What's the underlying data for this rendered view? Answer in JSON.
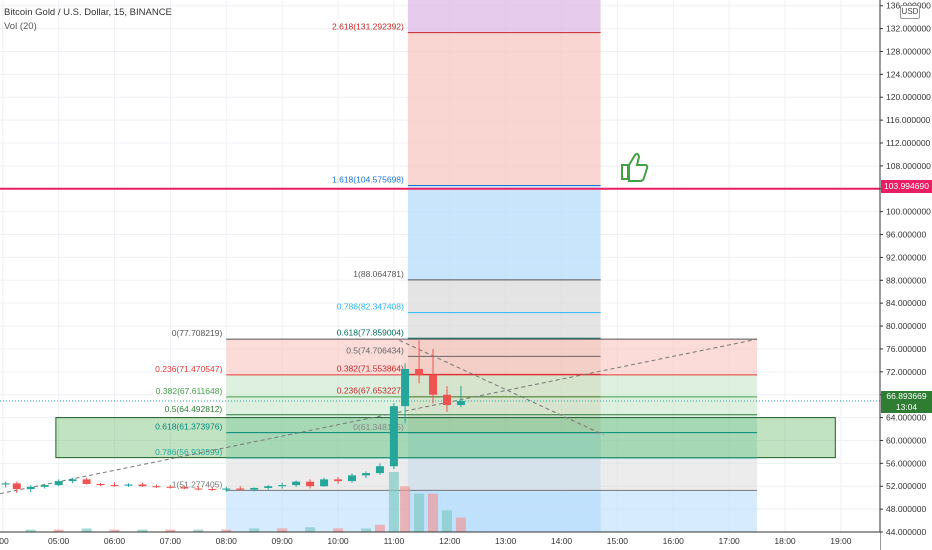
{
  "header": {
    "symbol_line": "Bitcoin Gold / U.S. Dollar, 15, BINANCE",
    "volume_line": "Vol (20)",
    "currency": "USD"
  },
  "price_badges": {
    "alert_line": "103.994690",
    "last_price": "66.893669",
    "countdown": "13:04"
  },
  "colors": {
    "up": "#26a69a",
    "down": "#ef5350",
    "alert": "#e91e63",
    "zone_green": "#4caf50",
    "fib_red": "#f8c4c0",
    "fib_blue": "#bbdefb",
    "fib_purple": "#e1bee7",
    "thumb": "#43a047"
  },
  "chart_data": {
    "type": "candlestick",
    "title": "Bitcoin Gold / U.S. Dollar, 15, BINANCE",
    "ylim": [
      44,
      137
    ],
    "y_ticks": [
      "44.000000",
      "48.000000",
      "52.000000",
      "56.000000",
      "60.000000",
      "64.000000",
      "68.000000",
      "72.000000",
      "76.000000",
      "80.000000",
      "84.000000",
      "88.000000",
      "92.000000",
      "96.000000",
      "100.000000",
      "104.000000",
      "108.000000",
      "112.000000",
      "116.000000",
      "120.000000",
      "124.000000",
      "128.000000",
      "132.000000",
      "136.000000"
    ],
    "x_ticks": [
      ":00",
      "05:00",
      "06:00",
      "07:00",
      "08:00",
      "09:00",
      "10:00",
      "11:00",
      "12:00",
      "13:00",
      "14:00",
      "15:00",
      "16:00",
      "17:00",
      "18:00",
      "19:00"
    ],
    "x_tick_hours": [
      4,
      5,
      6,
      7,
      8,
      9,
      10,
      11,
      12,
      13,
      14,
      15,
      16,
      17,
      18,
      19
    ],
    "x_range_hours": [
      3.95,
      19.7
    ],
    "candles": [
      {
        "t": 4.05,
        "o": 52.3,
        "h": 52.8,
        "l": 51.8,
        "c": 52.5
      },
      {
        "t": 4.25,
        "o": 52.5,
        "h": 52.8,
        "l": 50.8,
        "c": 51.5
      },
      {
        "t": 4.5,
        "o": 51.5,
        "h": 52.2,
        "l": 51.0,
        "c": 51.9
      },
      {
        "t": 4.75,
        "o": 51.9,
        "h": 52.3,
        "l": 51.6,
        "c": 52.2
      },
      {
        "t": 5.0,
        "o": 52.2,
        "h": 53.2,
        "l": 52.0,
        "c": 52.9
      },
      {
        "t": 5.25,
        "o": 52.9,
        "h": 53.5,
        "l": 52.5,
        "c": 53.2
      },
      {
        "t": 5.5,
        "o": 53.2,
        "h": 53.5,
        "l": 52.3,
        "c": 52.4
      },
      {
        "t": 5.75,
        "o": 52.4,
        "h": 52.6,
        "l": 52.0,
        "c": 52.2
      },
      {
        "t": 6.0,
        "o": 52.2,
        "h": 52.7,
        "l": 51.9,
        "c": 52.1
      },
      {
        "t": 6.25,
        "o": 52.1,
        "h": 52.5,
        "l": 51.9,
        "c": 52.3
      },
      {
        "t": 6.5,
        "o": 52.3,
        "h": 52.6,
        "l": 51.9,
        "c": 52.0
      },
      {
        "t": 6.75,
        "o": 52.0,
        "h": 52.3,
        "l": 51.7,
        "c": 51.9
      },
      {
        "t": 7.0,
        "o": 51.9,
        "h": 52.2,
        "l": 51.6,
        "c": 51.8
      },
      {
        "t": 7.25,
        "o": 51.8,
        "h": 52.1,
        "l": 51.5,
        "c": 51.6
      },
      {
        "t": 7.5,
        "o": 51.6,
        "h": 52.0,
        "l": 51.3,
        "c": 51.5
      },
      {
        "t": 7.75,
        "o": 51.5,
        "h": 51.8,
        "l": 51.2,
        "c": 51.4
      },
      {
        "t": 8.0,
        "o": 51.4,
        "h": 51.9,
        "l": 51.0,
        "c": 51.6
      },
      {
        "t": 8.25,
        "o": 51.6,
        "h": 52.0,
        "l": 51.2,
        "c": 51.4
      },
      {
        "t": 8.5,
        "o": 51.4,
        "h": 51.8,
        "l": 51.1,
        "c": 51.7
      },
      {
        "t": 8.75,
        "o": 51.7,
        "h": 52.2,
        "l": 51.4,
        "c": 52.0
      },
      {
        "t": 9.0,
        "o": 52.0,
        "h": 52.6,
        "l": 51.6,
        "c": 52.2
      },
      {
        "t": 9.25,
        "o": 52.2,
        "h": 53.0,
        "l": 51.9,
        "c": 52.8
      },
      {
        "t": 9.5,
        "o": 52.8,
        "h": 53.2,
        "l": 51.6,
        "c": 52.0
      },
      {
        "t": 9.75,
        "o": 52.0,
        "h": 53.5,
        "l": 51.9,
        "c": 53.2
      },
      {
        "t": 10.0,
        "o": 53.2,
        "h": 53.6,
        "l": 52.4,
        "c": 52.9
      },
      {
        "t": 10.25,
        "o": 52.9,
        "h": 54.2,
        "l": 52.6,
        "c": 53.9
      },
      {
        "t": 10.5,
        "o": 53.9,
        "h": 54.6,
        "l": 53.4,
        "c": 54.3
      },
      {
        "t": 10.75,
        "o": 54.3,
        "h": 56.0,
        "l": 54.0,
        "c": 55.5
      },
      {
        "t": 11.0,
        "o": 55.5,
        "h": 66.5,
        "l": 55.0,
        "c": 66.0
      },
      {
        "t": 11.2,
        "o": 66.0,
        "h": 73.5,
        "l": 63.0,
        "c": 72.5
      },
      {
        "t": 11.45,
        "o": 72.5,
        "h": 77.5,
        "l": 70.0,
        "c": 71.5
      },
      {
        "t": 11.7,
        "o": 71.5,
        "h": 76.0,
        "l": 66.5,
        "c": 68.0
      },
      {
        "t": 11.95,
        "o": 68.0,
        "h": 69.5,
        "l": 65.0,
        "c": 66.2
      },
      {
        "t": 12.2,
        "o": 66.2,
        "h": 69.5,
        "l": 65.8,
        "c": 66.9
      }
    ],
    "volume": [
      {
        "t": 4.5,
        "v": 2
      },
      {
        "t": 5.0,
        "v": 2
      },
      {
        "t": 5.5,
        "v": 3
      },
      {
        "t": 6.0,
        "v": 2
      },
      {
        "t": 6.5,
        "v": 2
      },
      {
        "t": 7.0,
        "v": 2
      },
      {
        "t": 7.5,
        "v": 2
      },
      {
        "t": 8.0,
        "v": 2
      },
      {
        "t": 8.5,
        "v": 3
      },
      {
        "t": 9.0,
        "v": 3
      },
      {
        "t": 9.5,
        "v": 4
      },
      {
        "t": 10.0,
        "v": 3
      },
      {
        "t": 10.5,
        "v": 3
      },
      {
        "t": 10.75,
        "v": 6
      },
      {
        "t": 11.0,
        "v": 50
      },
      {
        "t": 11.2,
        "v": 38
      },
      {
        "t": 11.45,
        "v": 32
      },
      {
        "t": 11.7,
        "v": 32
      },
      {
        "t": 11.95,
        "v": 18
      },
      {
        "t": 12.2,
        "v": 12
      }
    ],
    "fib_extension_right": [
      {
        "ratio": "2.618",
        "price": 131.292392,
        "label": "2.618(131.292392)"
      },
      {
        "ratio": "1.618",
        "price": 104.575698,
        "label": "1.618(104.575698)"
      },
      {
        "ratio": "1",
        "price": 88.064781,
        "label": "1(88.064781)"
      },
      {
        "ratio": "0.786",
        "price": 82.347408,
        "label": "0.786(82.347408)"
      },
      {
        "ratio": "0.618",
        "price": 77.859004,
        "label": "0.618(77.859004)"
      },
      {
        "ratio": "0.5",
        "price": 74.706434,
        "label": "0.5(74.706434)"
      },
      {
        "ratio": "0.382",
        "price": 71.553864,
        "label": "0.382(71.553864)"
      },
      {
        "ratio": "0.236",
        "price": 67.653227,
        "label": "0.236(67.653227)"
      },
      {
        "ratio": "0",
        "price": 61.348185,
        "label": "0(61.348185)"
      }
    ],
    "fib_retracement_left": [
      {
        "ratio": "0",
        "price": 77.708219,
        "label": "0(77.708219)"
      },
      {
        "ratio": "0.236",
        "price": 71.470547,
        "label": "0.236(71.470547)"
      },
      {
        "ratio": "0.382",
        "price": 67.611648,
        "label": "0.382(67.611648)"
      },
      {
        "ratio": "0.5",
        "price": 64.492812,
        "label": "0.5(64.492812)"
      },
      {
        "ratio": "0.618",
        "price": 61.373976,
        "label": "0.618(61.373976)"
      },
      {
        "ratio": "0.786",
        "price": 56.933599,
        "label": "0.786(56.933599)"
      },
      {
        "ratio": "1",
        "price": 51.277405,
        "label": "1(51.277405)"
      }
    ],
    "alert_line_price": 103.99469,
    "last_price": 66.893669,
    "support_zone": [
      57.0,
      64.0
    ],
    "support_zone_range_hours": [
      4.95,
      18.9
    ],
    "fib_left_range_hours": [
      8.0,
      17.5
    ],
    "fib_right_range_hours": [
      11.25,
      14.7
    ],
    "trend_line": [
      [
        3.95,
        50.7
      ],
      [
        17.5,
        77.7
      ]
    ],
    "dashed_line": [
      [
        11.1,
        77.5
      ],
      [
        14.75,
        61.0
      ]
    ]
  }
}
